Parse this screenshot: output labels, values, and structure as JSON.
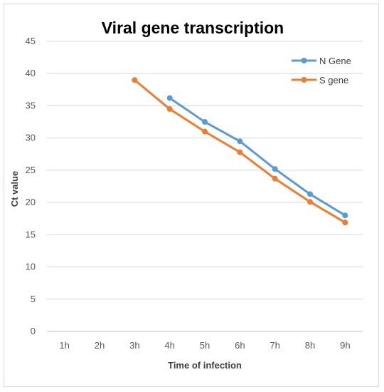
{
  "chart_data": {
    "type": "line",
    "title": "Viral gene transcription",
    "xlabel": "Time of infection",
    "ylabel": "Ct value",
    "categories": [
      "1h",
      "2h",
      "3h",
      "4h",
      "5h",
      "6h",
      "7h",
      "8h",
      "9h"
    ],
    "ylim": [
      0,
      45
    ],
    "yticks": [
      0,
      5,
      10,
      15,
      20,
      25,
      30,
      35,
      40,
      45
    ],
    "grid": "horizontal",
    "legend_position": "top-right",
    "series": [
      {
        "name": "N Gene",
        "color": "#5b9bd5",
        "values": [
          null,
          null,
          null,
          36.2,
          32.5,
          29.5,
          25.2,
          21.3,
          18.0
        ]
      },
      {
        "name": "S gene",
        "color": "#ed7d31",
        "values": [
          null,
          null,
          39.0,
          34.5,
          31.0,
          27.8,
          23.7,
          20.1,
          16.9
        ]
      }
    ]
  }
}
